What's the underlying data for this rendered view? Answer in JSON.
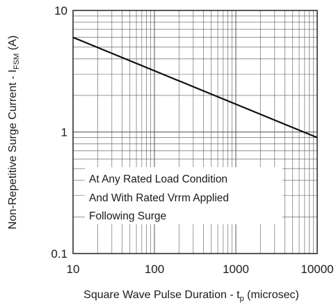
{
  "chart_data": {
    "type": "line",
    "title": "",
    "x_scale": "log",
    "y_scale": "log",
    "xlim": [
      10,
      10000
    ],
    "ylim": [
      0.1,
      10
    ],
    "x_ticks": [
      10,
      100,
      1000,
      10000
    ],
    "x_tick_labels": [
      "10",
      "100",
      "1000",
      "10000"
    ],
    "y_ticks": [
      0.1,
      1,
      10
    ],
    "y_tick_labels": [
      "0.1",
      "1",
      "10"
    ],
    "xlabel": {
      "main": "Square Wave Pulse Duration - t",
      "subscript": "p",
      "suffix": " (microsec)"
    },
    "ylabel": {
      "main": "Non-Repetitive Surge Current - I",
      "subscript": "FSM",
      "suffix": " (A)"
    },
    "grid": true,
    "series": [
      {
        "x": [
          10,
          10000
        ],
        "y": [
          6,
          0.9
        ],
        "color": "#111111"
      }
    ],
    "annotations": [
      "At Any Rated Load Condition",
      "And With Rated Vrrm Applied",
      "Following Surge"
    ]
  }
}
